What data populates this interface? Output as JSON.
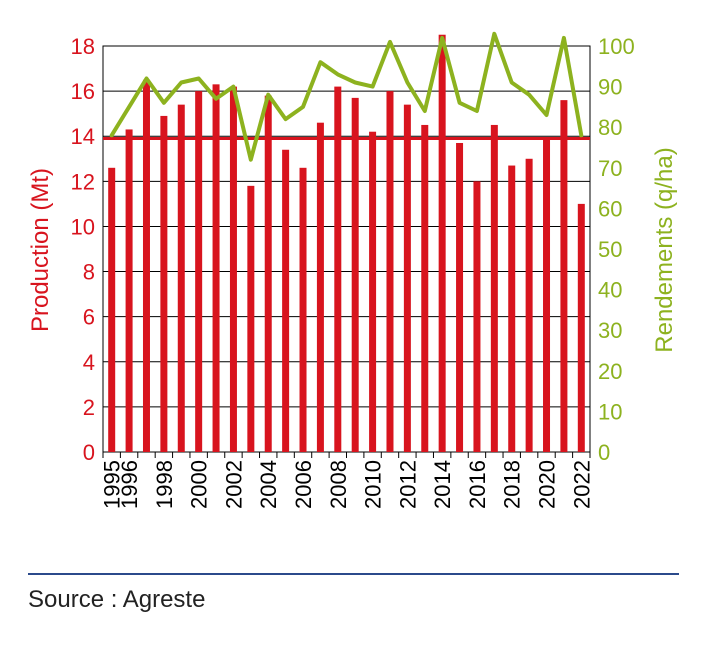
{
  "chart_data": {
    "type": "bar",
    "title": "",
    "colors": {
      "production": "#d8141e",
      "rendements": "#8db21f"
    },
    "grid": true,
    "x": [
      1995,
      1996,
      1997,
      1998,
      1999,
      2000,
      2001,
      2002,
      2003,
      2004,
      2005,
      2006,
      2007,
      2008,
      2009,
      2010,
      2011,
      2012,
      2013,
      2014,
      2015,
      2016,
      2017,
      2018,
      2019,
      2020,
      2021,
      2022
    ],
    "xtick_labels": [
      "1995",
      "1996",
      "1998",
      "2000",
      "2002",
      "2004",
      "2006",
      "2008",
      "2010",
      "2012",
      "2014",
      "2016",
      "2018",
      "2020",
      "2022"
    ],
    "xtick_values": [
      1995,
      1996,
      1998,
      2000,
      2002,
      2004,
      2006,
      2008,
      2010,
      2012,
      2014,
      2016,
      2018,
      2020,
      2022
    ],
    "production": {
      "axis": "left",
      "ylabel": "Production (Mt)",
      "ylim": [
        0,
        18
      ],
      "yticks": [
        0,
        2,
        4,
        6,
        8,
        10,
        12,
        14,
        16,
        18
      ],
      "values": [
        12.6,
        14.3,
        16.5,
        14.9,
        15.4,
        16.0,
        16.3,
        16.2,
        11.8,
        15.8,
        13.4,
        12.6,
        14.6,
        16.2,
        15.7,
        14.2,
        16.0,
        15.4,
        14.5,
        18.5,
        13.7,
        12.0,
        14.5,
        12.7,
        13.0,
        13.9,
        15.6,
        11.0
      ]
    },
    "rendements": {
      "axis": "right",
      "ylabel": "Rendements (q/ha)",
      "ylim": [
        0,
        100
      ],
      "yticks": [
        0,
        10,
        20,
        30,
        40,
        50,
        60,
        70,
        80,
        90,
        100
      ],
      "values": [
        78,
        85,
        92,
        86,
        91,
        92,
        87,
        90,
        72,
        88,
        82,
        85,
        96,
        93,
        91,
        90,
        101,
        91,
        84,
        102,
        86,
        84,
        103,
        91,
        88,
        83,
        102,
        78
      ]
    },
    "reference_line": {
      "axis": "left",
      "value": 13.9
    }
  },
  "footer": {
    "source": "Source : Agreste"
  }
}
